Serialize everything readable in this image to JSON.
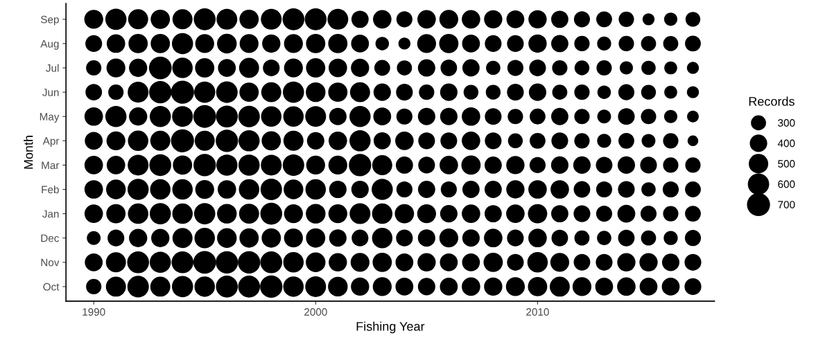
{
  "chart_data": {
    "type": "bubble",
    "orientation": "horizontal",
    "xlabel": "Fishing Year",
    "ylabel": "Month",
    "legend_title": "Records",
    "grid": false,
    "categories": [
      "Sep",
      "Aug",
      "Jul",
      "Jun",
      "May",
      "Apr",
      "Mar",
      "Feb",
      "Jan",
      "Dec",
      "Nov",
      "Oct"
    ],
    "xlim": [
      1988.75,
      2017.97
    ],
    "xticks": [
      1990,
      2000,
      2010
    ],
    "size_legend": [
      300,
      400,
      500,
      600,
      700
    ],
    "series": [
      {
        "color": "#000000",
        "values": [
          1990,
          1990,
          1990,
          1990,
          1990,
          1990,
          1990,
          1990,
          1990,
          1990,
          1990,
          1990
        ],
        "sizes": [
          470,
          370,
          310,
          360,
          450,
          420,
          450,
          450,
          450,
          250,
          420,
          310
        ]
      },
      {
        "color": "#000000",
        "values": [
          1991,
          1991,
          1991,
          1991,
          1991,
          1991,
          1991,
          1991,
          1991,
          1991,
          1991,
          1991
        ],
        "sizes": [
          590,
          450,
          470,
          310,
          590,
          470,
          450,
          510,
          490,
          370,
          530,
          530
        ]
      },
      {
        "color": "#000000",
        "values": [
          1992,
          1992,
          1992,
          1992,
          1992,
          1992,
          1992,
          1992,
          1992,
          1992,
          1992,
          1992
        ],
        "sizes": [
          530,
          490,
          440,
          570,
          440,
          550,
          570,
          590,
          550,
          440,
          630,
          610
        ]
      },
      {
        "color": "#000000",
        "values": [
          1993,
          1993,
          1993,
          1993,
          1993,
          1993,
          1993,
          1993,
          1993,
          1993,
          1993,
          1993
        ],
        "sizes": [
          490,
          490,
          680,
          660,
          590,
          530,
          630,
          550,
          590,
          440,
          590,
          530
        ]
      },
      {
        "color": "#000000",
        "values": [
          1994,
          1994,
          1994,
          1994,
          1994,
          1994,
          1994,
          1994,
          1994,
          1994,
          1994,
          1994
        ],
        "sizes": [
          530,
          590,
          550,
          700,
          570,
          700,
          490,
          550,
          550,
          530,
          630,
          590
        ]
      },
      {
        "color": "#000000",
        "values": [
          1995,
          1995,
          1995,
          1995,
          1995,
          1995,
          1995,
          1995,
          1995,
          1995,
          1995,
          1995
        ],
        "sizes": [
          630,
          470,
          490,
          590,
          680,
          530,
          660,
          470,
          590,
          550,
          680,
          550
        ]
      },
      {
        "color": "#000000",
        "values": [
          1996,
          1996,
          1996,
          1996,
          1996,
          1996,
          1996,
          1996,
          1996,
          1996,
          1996,
          1996
        ],
        "sizes": [
          570,
          510,
          420,
          610,
          630,
          660,
          590,
          450,
          510,
          510,
          660,
          630
        ]
      },
      {
        "color": "#000000",
        "values": [
          1997,
          1997,
          1997,
          1997,
          1997,
          1997,
          1997,
          1997,
          1997,
          1997,
          1997,
          1997
        ],
        "sizes": [
          490,
          470,
          530,
          490,
          610,
          590,
          590,
          550,
          530,
          490,
          660,
          630
        ]
      },
      {
        "color": "#000000",
        "values": [
          1998,
          1998,
          1998,
          1998,
          1998,
          1998,
          1998,
          1998,
          1998,
          1998,
          1998,
          1998
        ],
        "sizes": [
          570,
          440,
          370,
          530,
          550,
          490,
          570,
          610,
          630,
          490,
          630,
          660
        ]
      },
      {
        "color": "#000000",
        "values": [
          1999,
          1999,
          1999,
          1999,
          1999,
          1999,
          1999,
          1999,
          1999,
          1999,
          1999,
          1999
        ],
        "sizes": [
          630,
          470,
          470,
          590,
          550,
          530,
          610,
          510,
          470,
          470,
          550,
          550
        ]
      },
      {
        "color": "#000000",
        "values": [
          2000,
          2000,
          2000,
          2000,
          2000,
          2000,
          2000,
          2000,
          2000,
          2000,
          2000,
          2000
        ],
        "sizes": [
          630,
          490,
          490,
          510,
          570,
          400,
          470,
          550,
          510,
          490,
          510,
          570
        ]
      },
      {
        "color": "#000000",
        "values": [
          2001,
          2001,
          2001,
          2001,
          2001,
          2001,
          2001,
          2001,
          2001,
          2001,
          2001,
          2001
        ],
        "sizes": [
          570,
          490,
          450,
          490,
          400,
          450,
          470,
          400,
          470,
          400,
          440,
          510
        ]
      },
      {
        "color": "#000000",
        "values": [
          2002,
          2002,
          2002,
          2002,
          2002,
          2002,
          2002,
          2002,
          2002,
          2002,
          2002,
          2002
        ],
        "sizes": [
          390,
          420,
          440,
          530,
          590,
          590,
          660,
          400,
          570,
          370,
          470,
          440
        ]
      },
      {
        "color": "#000000",
        "values": [
          2003,
          2003,
          2003,
          2003,
          2003,
          2003,
          2003,
          2003,
          2003,
          2003,
          2003,
          2003
        ],
        "sizes": [
          450,
          240,
          330,
          400,
          420,
          390,
          530,
          590,
          550,
          550,
          490,
          470
        ]
      },
      {
        "color": "#000000",
        "values": [
          2004,
          2004,
          2004,
          2004,
          2004,
          2004,
          2004,
          2004,
          2004,
          2004,
          2004,
          2004
        ],
        "sizes": [
          340,
          190,
          300,
          370,
          340,
          450,
          390,
          340,
          490,
          370,
          420,
          420
        ]
      },
      {
        "color": "#000000",
        "values": [
          2005,
          2005,
          2005,
          2005,
          2005,
          2005,
          2005,
          2005,
          2005,
          2005,
          2005,
          2005
        ],
        "sizes": [
          450,
          470,
          400,
          310,
          400,
          370,
          370,
          390,
          470,
          400,
          440,
          400
        ]
      },
      {
        "color": "#000000",
        "values": [
          2006,
          2006,
          2006,
          2006,
          2006,
          2006,
          2006,
          2006,
          2006,
          2006,
          2006,
          2006
        ],
        "sizes": [
          470,
          490,
          360,
          400,
          400,
          370,
          450,
          340,
          400,
          470,
          420,
          420
        ]
      },
      {
        "color": "#000000",
        "values": [
          2007,
          2007,
          2007,
          2007,
          2007,
          2007,
          2007,
          2007,
          2007,
          2007,
          2007,
          2007
        ],
        "sizes": [
          450,
          420,
          390,
          290,
          450,
          450,
          490,
          390,
          450,
          400,
          420,
          450
        ]
      },
      {
        "color": "#000000",
        "values": [
          2008,
          2008,
          2008,
          2008,
          2008,
          2008,
          2008,
          2008,
          2008,
          2008,
          2008,
          2008
        ],
        "sizes": [
          440,
          370,
          270,
          290,
          370,
          370,
          390,
          390,
          390,
          450,
          490,
          440
        ]
      },
      {
        "color": "#000000",
        "values": [
          2009,
          2009,
          2009,
          2009,
          2009,
          2009,
          2009,
          2009,
          2009,
          2009,
          2009,
          2009
        ],
        "sizes": [
          420,
          370,
          340,
          370,
          310,
          290,
          440,
          440,
          450,
          370,
          370,
          470
        ]
      },
      {
        "color": "#000000",
        "values": [
          2010,
          2010,
          2010,
          2010,
          2010,
          2010,
          2010,
          2010,
          2010,
          2010,
          2010,
          2010
        ],
        "sizes": [
          440,
          440,
          370,
          400,
          330,
          330,
          340,
          450,
          490,
          450,
          550,
          490
        ]
      },
      {
        "color": "#000000",
        "values": [
          2011,
          2011,
          2011,
          2011,
          2011,
          2011,
          2011,
          2011,
          2011,
          2011,
          2011,
          2011
        ],
        "sizes": [
          390,
          390,
          310,
          300,
          390,
          370,
          400,
          450,
          390,
          360,
          470,
          530
        ]
      },
      {
        "color": "#000000",
        "values": [
          2012,
          2012,
          2012,
          2012,
          2012,
          2012,
          2012,
          2012,
          2012,
          2012,
          2012,
          2012
        ],
        "sizes": [
          340,
          310,
          290,
          310,
          310,
          310,
          400,
          360,
          370,
          300,
          360,
          470
        ]
      },
      {
        "color": "#000000",
        "values": [
          2013,
          2013,
          2013,
          2013,
          2013,
          2013,
          2013,
          2013,
          2013,
          2013,
          2013,
          2013
        ],
        "sizes": [
          330,
          260,
          310,
          240,
          250,
          260,
          360,
          340,
          340,
          270,
          370,
          420
        ]
      },
      {
        "color": "#000000",
        "values": [
          2014,
          2014,
          2014,
          2014,
          2014,
          2014,
          2014,
          2014,
          2014,
          2014,
          2014,
          2014
        ],
        "sizes": [
          310,
          310,
          230,
          340,
          370,
          330,
          400,
          370,
          420,
          360,
          440,
          450
        ]
      },
      {
        "color": "#000000",
        "values": [
          2015,
          2015,
          2015,
          2015,
          2015,
          2015,
          2015,
          2015,
          2015,
          2015,
          2015,
          2015
        ],
        "sizes": [
          190,
          300,
          270,
          290,
          310,
          250,
          370,
          270,
          340,
          300,
          440,
          420
        ]
      },
      {
        "color": "#000000",
        "values": [
          2016,
          2016,
          2016,
          2016,
          2016,
          2016,
          2016,
          2016,
          2016,
          2016,
          2016,
          2016
        ],
        "sizes": [
          230,
          300,
          220,
          220,
          230,
          310,
          310,
          340,
          310,
          260,
          400,
          420
        ]
      },
      {
        "color": "#000000",
        "values": [
          2017,
          2017,
          2017,
          2017,
          2017,
          2017,
          2017,
          2017,
          2017,
          2017,
          2017,
          2017
        ],
        "sizes": [
          290,
          330,
          190,
          190,
          180,
          150,
          310,
          330,
          330,
          340,
          370,
          370
        ]
      }
    ]
  }
}
